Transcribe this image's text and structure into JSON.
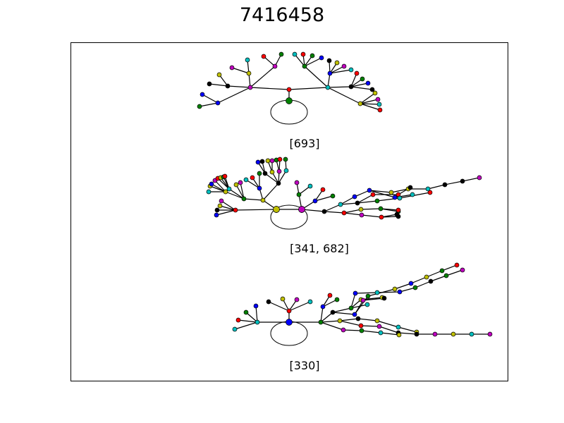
{
  "title": "7416458",
  "diagrams": [
    {
      "label": "[693]"
    },
    {
      "label": "[341, 682]"
    },
    {
      "label": "[330]"
    }
  ],
  "colors": {
    "r": "#ff0000",
    "g": "#008000",
    "b": "#0000ff",
    "c": "#00bfbf",
    "m": "#bf00bf",
    "y": "#bfbf00",
    "k": "#000000"
  }
}
